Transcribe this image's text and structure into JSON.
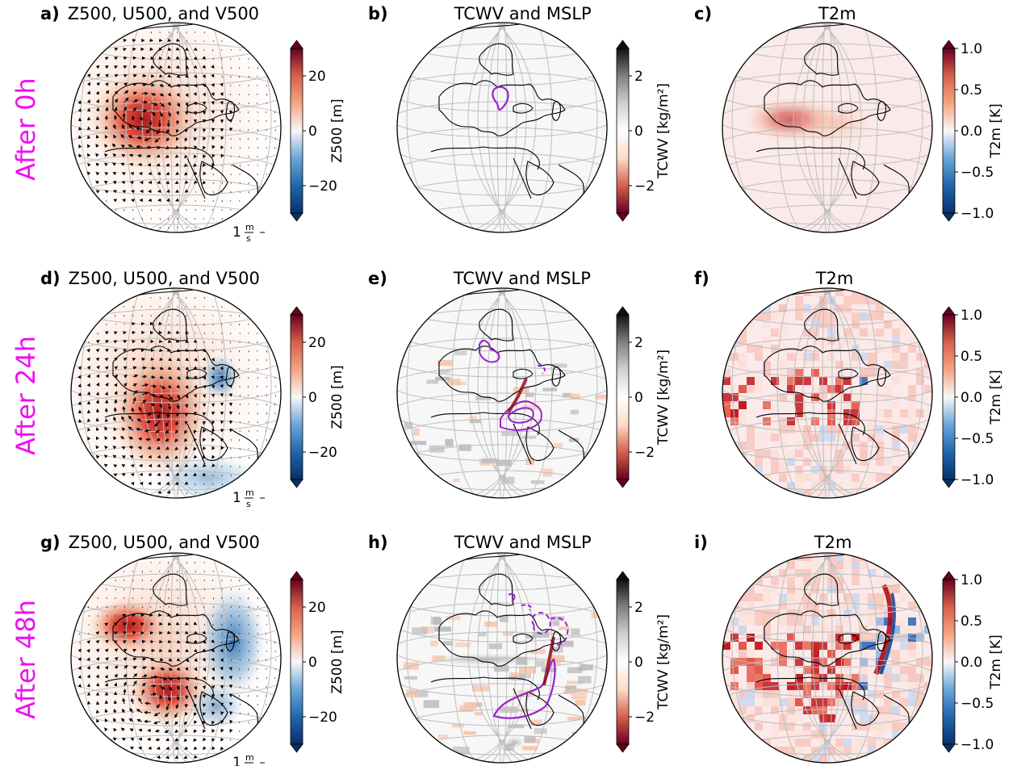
{
  "rows": [
    {
      "label": "After 0h"
    },
    {
      "label": "After 24h"
    },
    {
      "label": "After 48h"
    }
  ],
  "panels": [
    {
      "id": "a",
      "label": "a)",
      "title": "Z500, U500, and V500",
      "kind": "z500"
    },
    {
      "id": "b",
      "label": "b)",
      "title": "TCWV and MSLP",
      "kind": "tcwv"
    },
    {
      "id": "c",
      "label": "c)",
      "title": "T2m",
      "kind": "t2m"
    },
    {
      "id": "d",
      "label": "d)",
      "title": "Z500, U500, and V500",
      "kind": "z500"
    },
    {
      "id": "e",
      "label": "e)",
      "title": "TCWV and MSLP",
      "kind": "tcwv"
    },
    {
      "id": "f",
      "label": "f)",
      "title": "T2m",
      "kind": "t2m"
    },
    {
      "id": "g",
      "label": "g)",
      "title": "Z500, U500, and V500",
      "kind": "z500"
    },
    {
      "id": "h",
      "label": "h)",
      "title": "TCWV and MSLP",
      "kind": "tcwv"
    },
    {
      "id": "i",
      "label": "i)",
      "title": "T2m",
      "kind": "t2m"
    }
  ],
  "colorbars": {
    "z500": {
      "label": "Z500 [m]",
      "ticks": [
        "20",
        "0",
        "−20"
      ],
      "tick_values": [
        20,
        0,
        -20
      ],
      "range": [
        -30,
        30
      ],
      "colors": [
        "#08306b",
        "#2166ac",
        "#6aa6d8",
        "#f7f7f7",
        "#f4a582",
        "#d6604d",
        "#67001f"
      ]
    },
    "tcwv": {
      "label": "TCWV [kg/m²]",
      "ticks": [
        "2",
        "0",
        "−2"
      ],
      "tick_values": [
        2,
        0,
        -2
      ],
      "range": [
        -3,
        3
      ],
      "colors": [
        "#67001f",
        "#d6604d",
        "#fddbc7",
        "#ffffff",
        "#d0d0d0",
        "#808080",
        "#101010"
      ]
    },
    "t2m": {
      "label": "T2m [K]",
      "ticks": [
        "1.0",
        "0.5",
        "0.0",
        "−0.5",
        "−1.0"
      ],
      "tick_values": [
        1.0,
        0.5,
        0.0,
        -0.5,
        -1.0
      ],
      "range": [
        -1,
        1
      ],
      "colors": [
        "#08306b",
        "#2166ac",
        "#6aa6d8",
        "#f7f7f7",
        "#f4a582",
        "#d6604d",
        "#67001f"
      ]
    }
  },
  "wind_scale_label": {
    "value": "1",
    "num": "m",
    "den": "s"
  },
  "colors": {
    "row_label": "#f00ff0",
    "mslp_contour": "#9b1fd0"
  }
}
